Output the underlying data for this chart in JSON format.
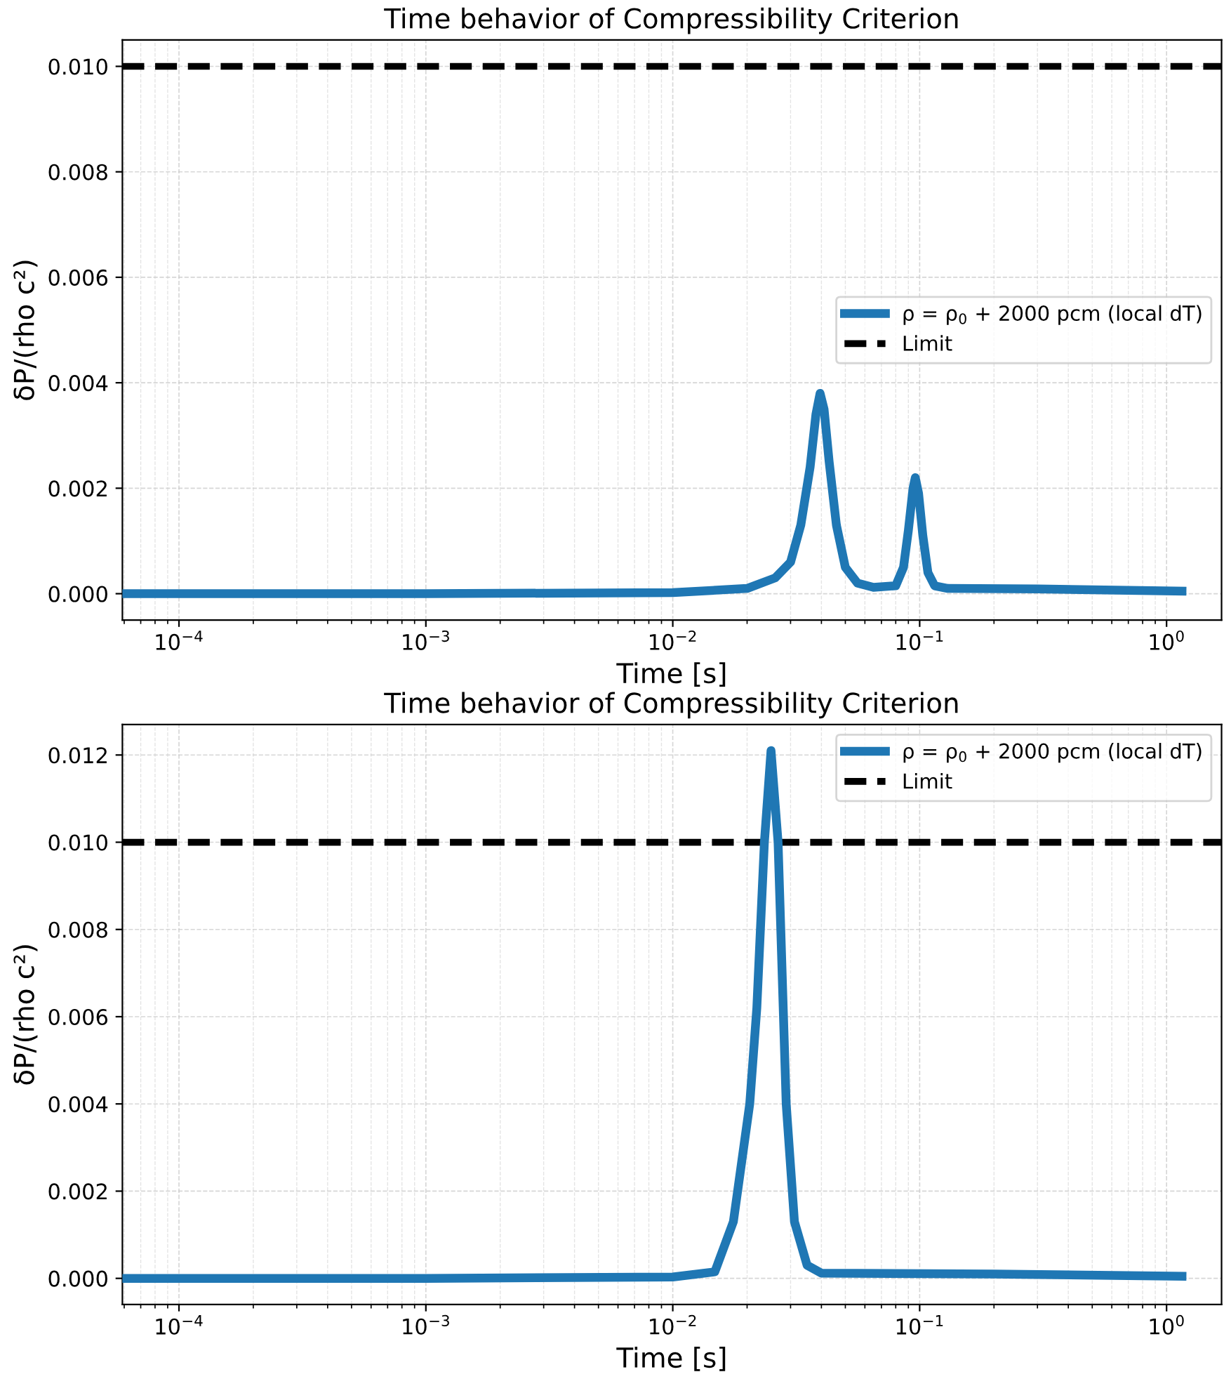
{
  "chart_data": [
    {
      "type": "line",
      "title": "Time behavior of Compressibility Criterion",
      "xlabel": "Time [s]",
      "ylabel": "δP/(rho c²)",
      "log": "x",
      "grid": true,
      "legend": "right",
      "line_style": "solid",
      "marker": "none",
      "xlim": [
        5.9e-05,
        1.67
      ],
      "ylim": [
        -0.0005,
        0.0105
      ],
      "xticks": [
        {
          "value": 0.0001,
          "label": "10$^{−4}$"
        },
        {
          "value": 0.001,
          "label": "10$^{−3}$"
        },
        {
          "value": 0.01,
          "label": "10$^{−2}$"
        },
        {
          "value": 0.1,
          "label": "10$^{−1}$"
        },
        {
          "value": 1,
          "label": "10$^{0}$"
        }
      ],
      "yticks": [
        {
          "value": 0,
          "label": "0.000"
        },
        {
          "value": 0.002,
          "label": "0.002"
        },
        {
          "value": 0.004,
          "label": "0.004"
        },
        {
          "value": 0.006,
          "label": "0.006"
        },
        {
          "value": 0.008,
          "label": "0.008"
        },
        {
          "value": 0.01,
          "label": "0.010"
        }
      ],
      "series": [
        {
          "name": "ρ = ρ$_{0}$ + 2000 pcm (local dT)",
          "color": "#1f77b4",
          "x": [
            5.9e-05,
            0.001,
            0.01,
            0.02,
            0.026,
            0.03,
            0.033,
            0.036,
            0.038,
            0.0395,
            0.041,
            0.043,
            0.046,
            0.05,
            0.056,
            0.065,
            0.08,
            0.086,
            0.09,
            0.094,
            0.096,
            0.099,
            0.103,
            0.108,
            0.115,
            0.13,
            0.3,
            1.155
          ],
          "values": [
            0,
            0,
            2e-05,
            0.0001,
            0.0003,
            0.0006,
            0.0013,
            0.0024,
            0.0034,
            0.0038,
            0.0035,
            0.0025,
            0.0013,
            0.0005,
            0.0002,
            0.00012,
            0.00015,
            0.0005,
            0.0012,
            0.002,
            0.0022,
            0.0019,
            0.0011,
            0.0004,
            0.00015,
            0.0001,
            9e-05,
            5e-05
          ]
        }
      ],
      "ref_lines": [
        {
          "axis": "y",
          "value": 0.01,
          "label": "Limit",
          "color": "#000000",
          "line_style": "dashed"
        }
      ]
    },
    {
      "type": "line",
      "title": "Time behavior of Compressibility Criterion",
      "xlabel": "Time [s]",
      "ylabel": "δP/(rho c²)",
      "log": "x",
      "grid": true,
      "legend": "top right",
      "line_style": "solid",
      "marker": "none",
      "xlim": [
        5.9e-05,
        1.67
      ],
      "ylim": [
        -0.0006,
        0.0127
      ],
      "xticks": [
        {
          "value": 0.0001,
          "label": "10$^{−4}$"
        },
        {
          "value": 0.001,
          "label": "10$^{−3}$"
        },
        {
          "value": 0.01,
          "label": "10$^{−2}$"
        },
        {
          "value": 0.1,
          "label": "10$^{−1}$"
        },
        {
          "value": 1,
          "label": "10$^{0}$"
        }
      ],
      "yticks": [
        {
          "value": 0,
          "label": "0.000"
        },
        {
          "value": 0.002,
          "label": "0.002"
        },
        {
          "value": 0.004,
          "label": "0.004"
        },
        {
          "value": 0.006,
          "label": "0.006"
        },
        {
          "value": 0.008,
          "label": "0.008"
        },
        {
          "value": 0.01,
          "label": "0.010"
        },
        {
          "value": 0.012,
          "label": "0.012"
        }
      ],
      "series": [
        {
          "name": "ρ = ρ$_{0}$ + 2000 pcm (local dT)",
          "color": "#1f77b4",
          "x": [
            5.9e-05,
            0.001,
            0.01,
            0.0148,
            0.0176,
            0.0205,
            0.0219,
            0.0235,
            0.025,
            0.0267,
            0.0288,
            0.0311,
            0.035,
            0.04,
            0.2,
            1.155
          ],
          "values": [
            0,
            0,
            3e-05,
            0.00015,
            0.0013,
            0.004,
            0.0062,
            0.01,
            0.0121,
            0.01,
            0.004,
            0.0013,
            0.0003,
            0.00012,
            0.0001,
            5e-05
          ]
        }
      ],
      "ref_lines": [
        {
          "axis": "y",
          "value": 0.01,
          "label": "Limit",
          "color": "#000000",
          "line_style": "dashed"
        }
      ]
    }
  ]
}
